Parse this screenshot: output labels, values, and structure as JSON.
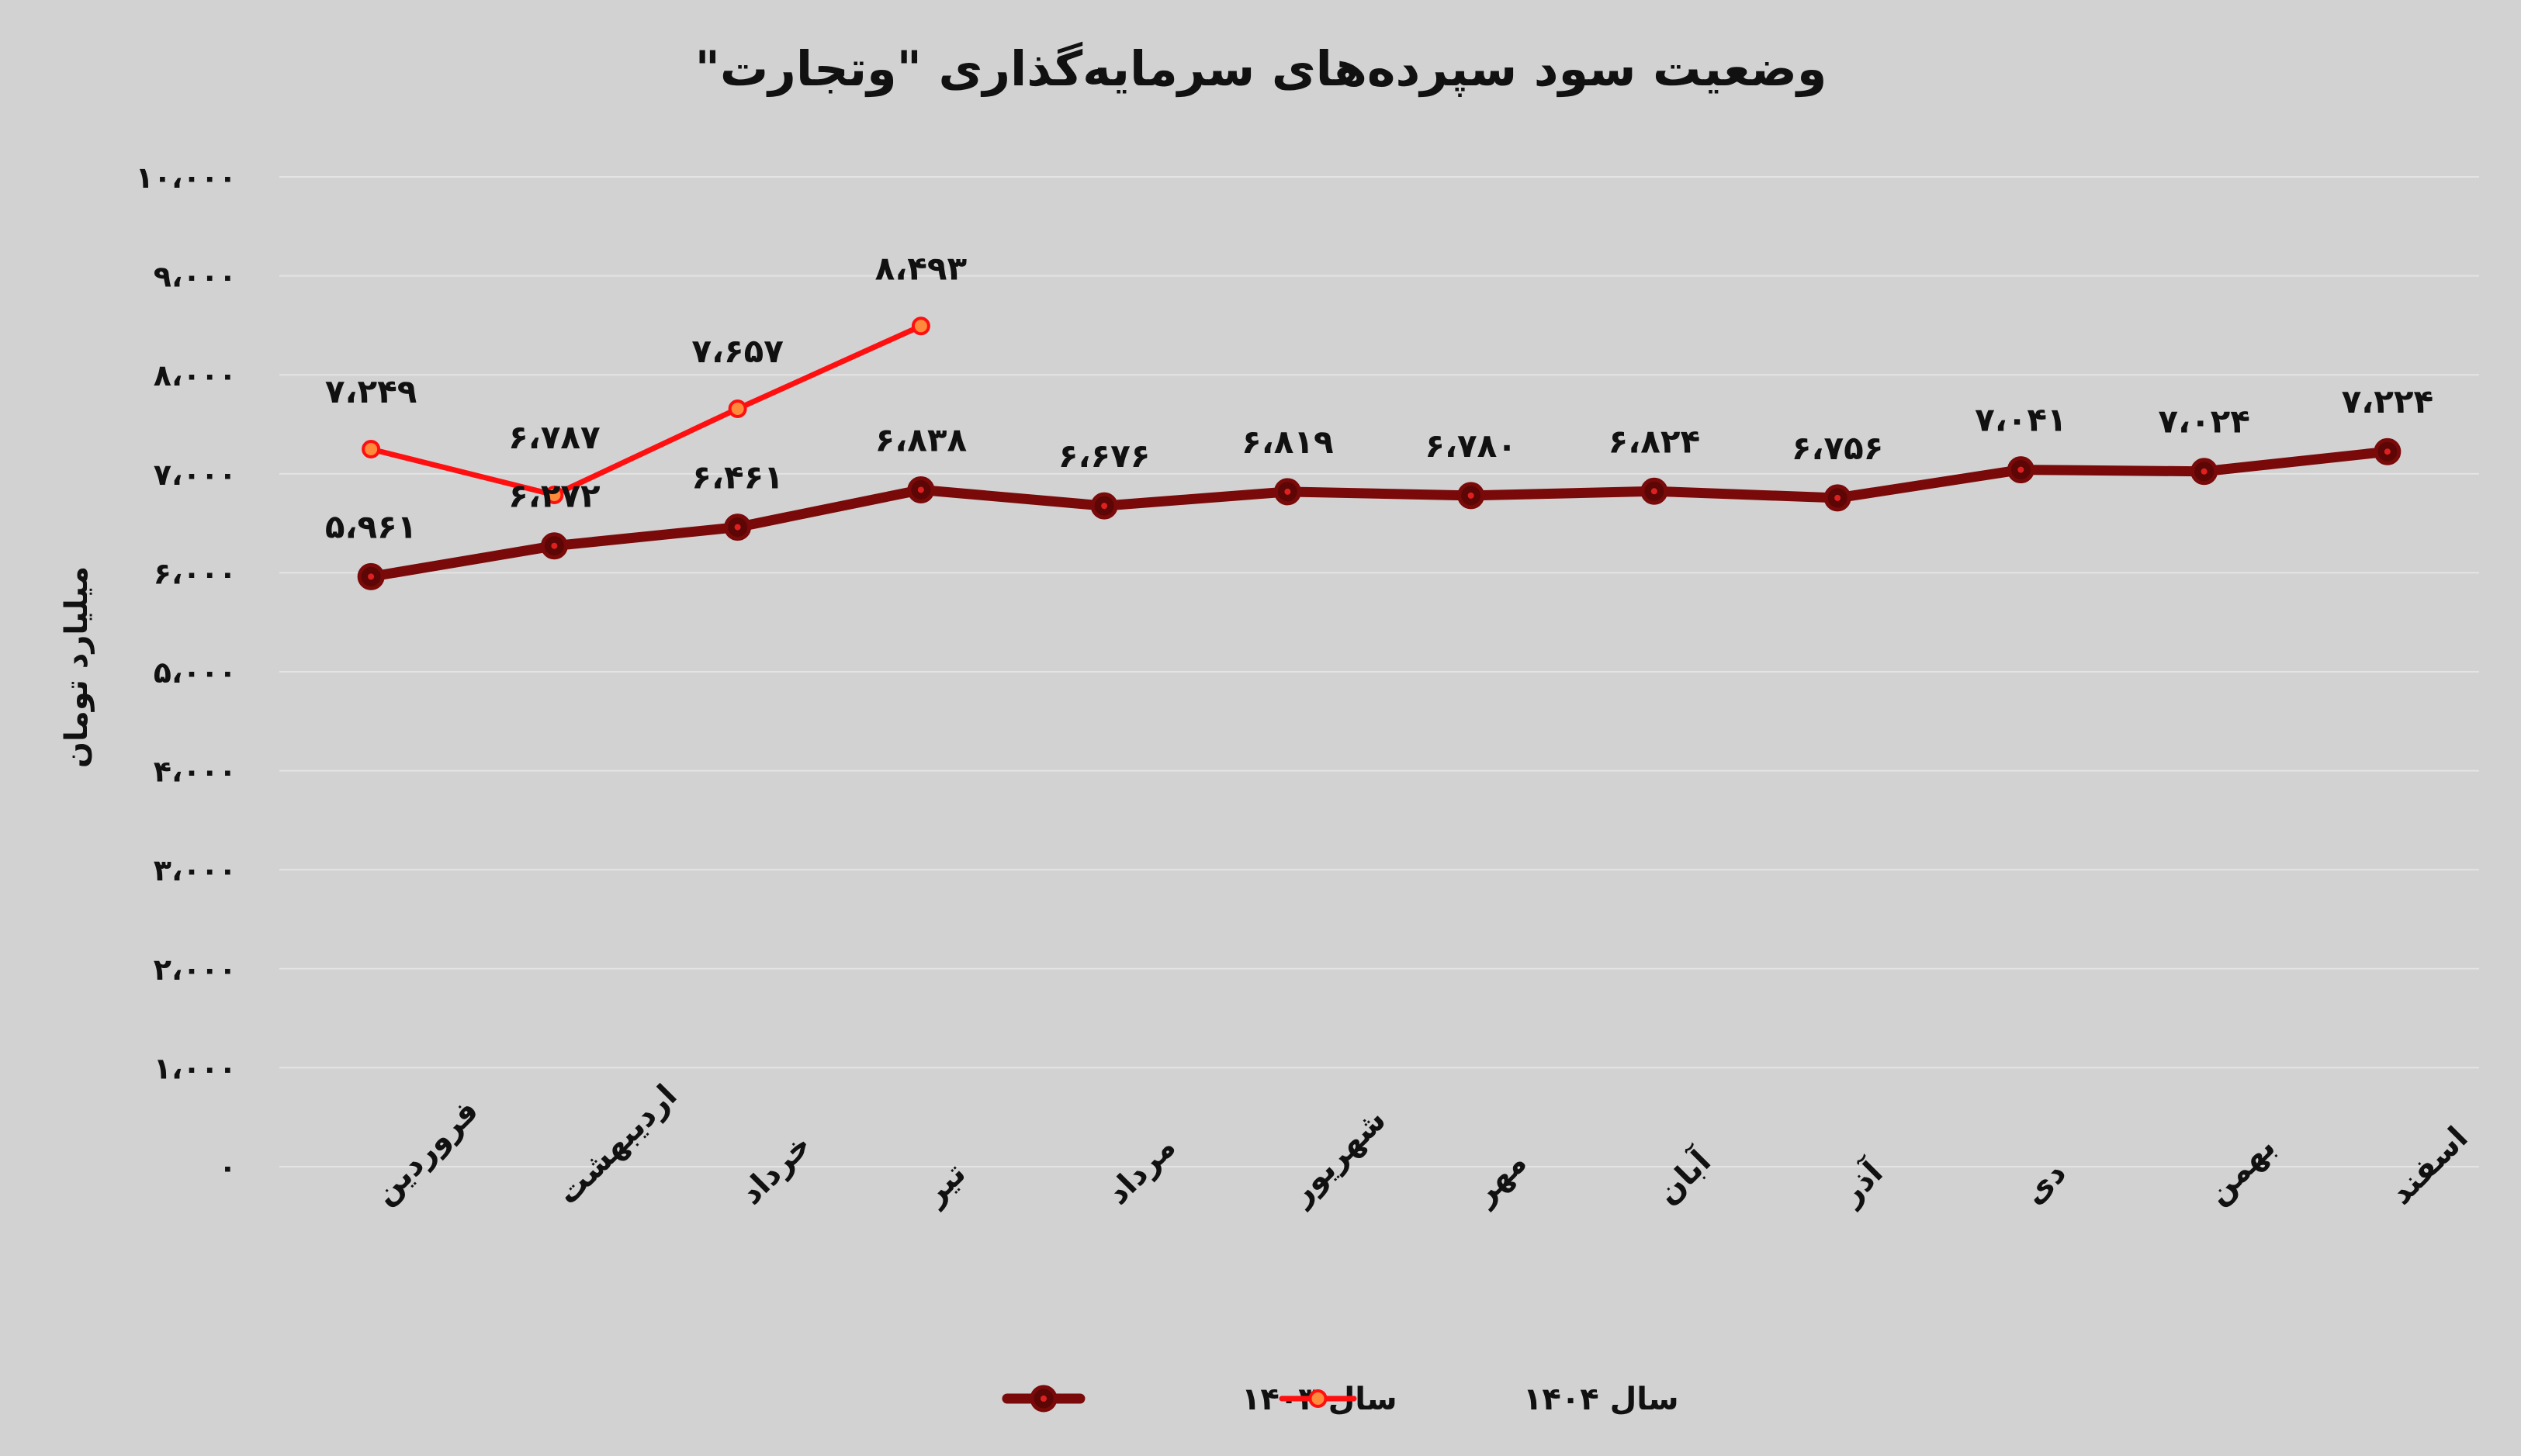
{
  "chart_data": {
    "type": "line",
    "title": "وضعیت سود سپرده‌های سرمایه‌گذاری \"وتجارت\"",
    "ylabel": "میلیارد تومان",
    "xlabel": "",
    "ylim": [
      0,
      10000
    ],
    "grid": true,
    "legend_position": "bottom",
    "categories": [
      "فروردین",
      "اردیبهشت",
      "خرداد",
      "تیر",
      "مرداد",
      "شهریور",
      "مهر",
      "آبان",
      "آذر",
      "دی",
      "بهمن",
      "اسفند"
    ],
    "y_tick_labels": [
      "۰",
      "۱،۰۰۰",
      "۲،۰۰۰",
      "۳،۰۰۰",
      "۴،۰۰۰",
      "۵،۰۰۰",
      "۶،۰۰۰",
      "۷،۰۰۰",
      "۸،۰۰۰",
      "۹،۰۰۰",
      "۱۰،۰۰۰"
    ],
    "series": [
      {
        "name": "سال ۱۴۰۳",
        "color": "#7a0a0a",
        "values": [
          5961,
          6272,
          6461,
          6838,
          6676,
          6819,
          6780,
          6824,
          6756,
          7041,
          7024,
          7224
        ],
        "labels": [
          "۵،۹۶۱",
          "۶،۲۷۲",
          "۶،۴۶۱",
          "۶،۸۳۸",
          "۶،۶۷۶",
          "۶،۸۱۹",
          "۶،۷۸۰",
          "۶،۸۲۴",
          "۶،۷۵۶",
          "۷،۰۴۱",
          "۷،۰۲۴",
          "۷،۲۲۴"
        ]
      },
      {
        "name": "سال ۱۴۰۴",
        "color": "#ff1010",
        "values": [
          7249,
          6787,
          7657,
          8493,
          null,
          null,
          null,
          null,
          null,
          null,
          null,
          null
        ],
        "labels": [
          "۷،۲۴۹",
          "۶،۷۸۷",
          "۷،۶۵۷",
          "۸،۴۹۳",
          null,
          null,
          null,
          null,
          null,
          null,
          null,
          null
        ]
      }
    ]
  }
}
